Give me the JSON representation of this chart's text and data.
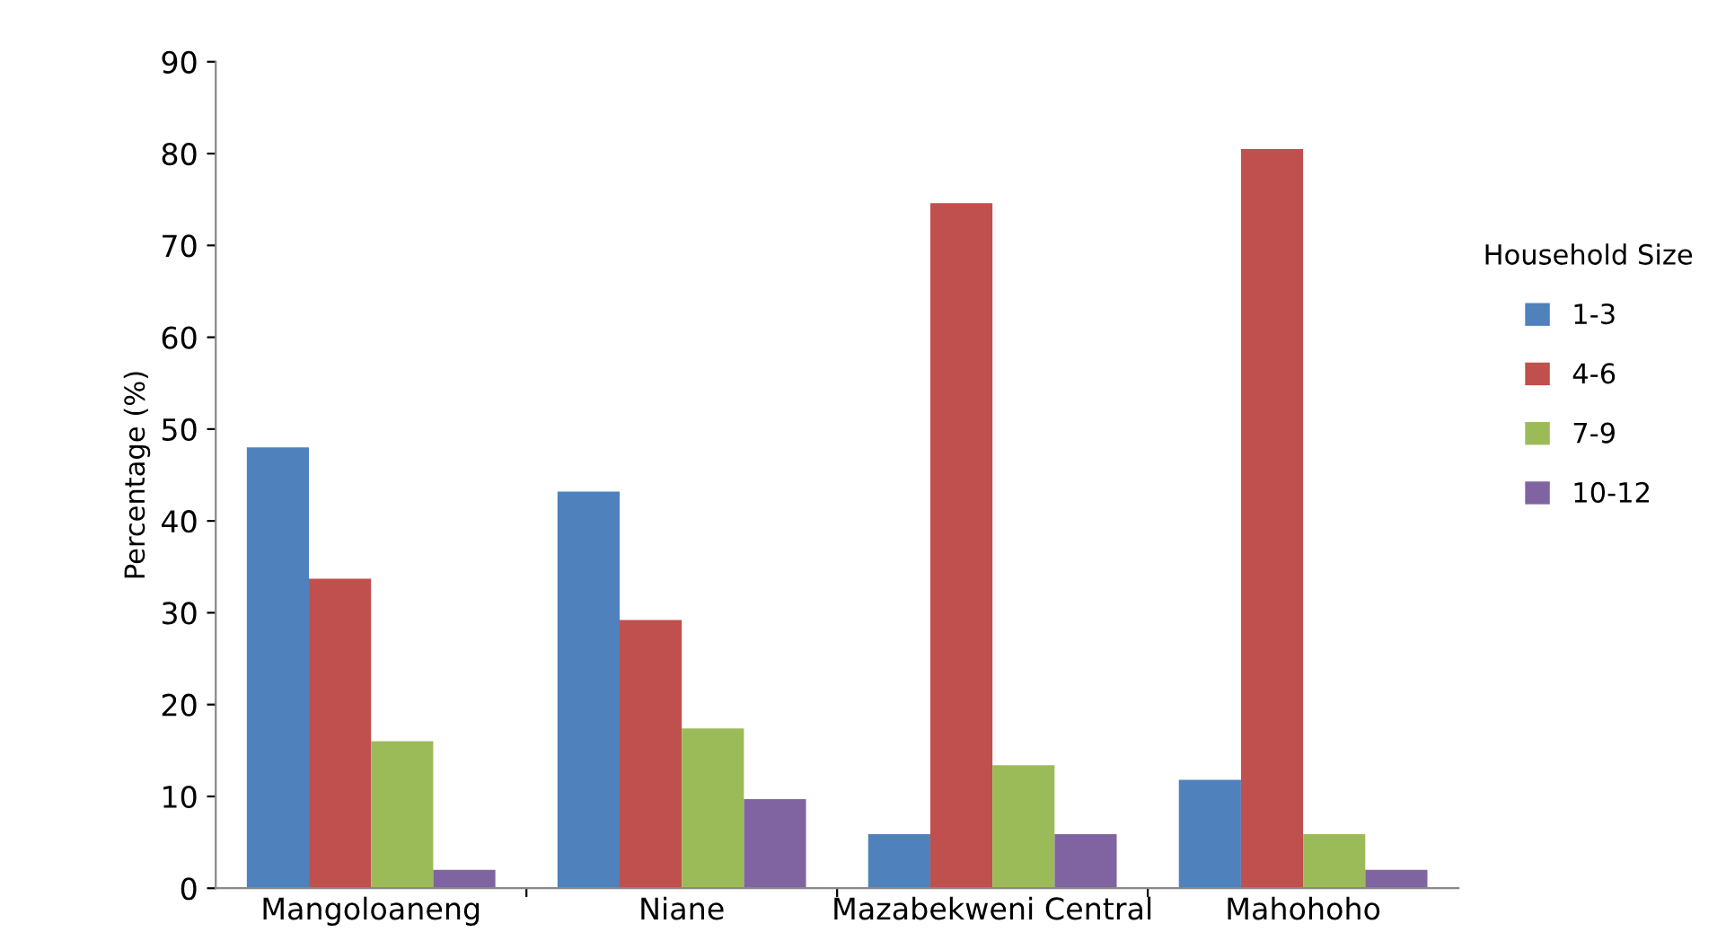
{
  "chart_data": {
    "type": "bar",
    "ylabel": "Percentage (%)",
    "legend_title": "Household Size",
    "categories": [
      "Mangoloaneng",
      "Niane",
      "Mazabekweni Central",
      "Mahohoho"
    ],
    "series": [
      {
        "name": "1-3",
        "color": "#4f81bd",
        "values": [
          48,
          43.2,
          5.9,
          11.8
        ]
      },
      {
        "name": "4-6",
        "color": "#c0504d",
        "values": [
          33.7,
          29.2,
          74.6,
          80.5
        ]
      },
      {
        "name": "7-9",
        "color": "#9bbb59",
        "values": [
          16,
          17.4,
          13.4,
          5.9
        ]
      },
      {
        "name": "10-12",
        "color": "#8064a2",
        "values": [
          2,
          9.7,
          5.9,
          2
        ]
      }
    ],
    "ylim": [
      0,
      90
    ],
    "yticks": [
      0,
      10,
      20,
      30,
      40,
      50,
      60,
      70,
      80,
      90
    ],
    "grid": false,
    "legend": "right"
  }
}
